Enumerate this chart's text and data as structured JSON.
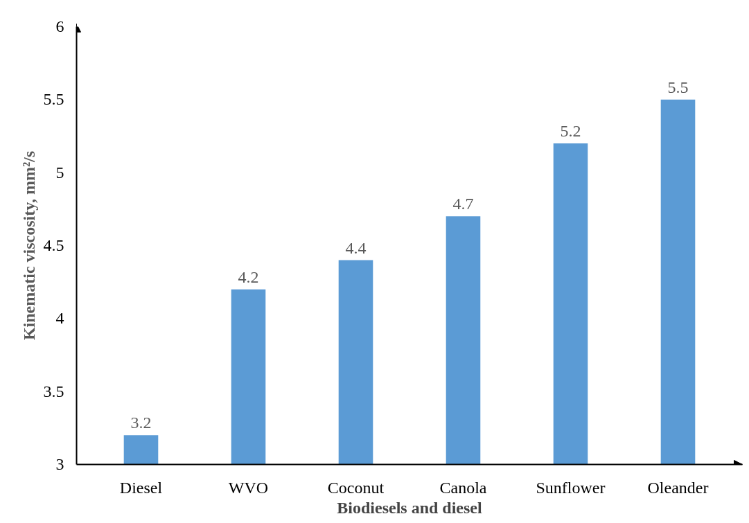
{
  "chart_data": {
    "type": "bar",
    "xlabel": "Biodiesels and diesel",
    "ylabel": "Kinematic viscosity, mm²/s",
    "categories": [
      "Diesel",
      "WVO",
      "Coconut",
      "Canola",
      "Sunflower",
      "Oleander"
    ],
    "values": [
      3.2,
      4.2,
      4.4,
      4.7,
      5.2,
      5.5
    ],
    "color": "#5b9bd5",
    "ylim": [
      3,
      6
    ],
    "yticks": [
      3,
      3.5,
      4,
      4.5,
      5,
      5.5,
      6
    ],
    "grid": false,
    "data_labels": true
  }
}
